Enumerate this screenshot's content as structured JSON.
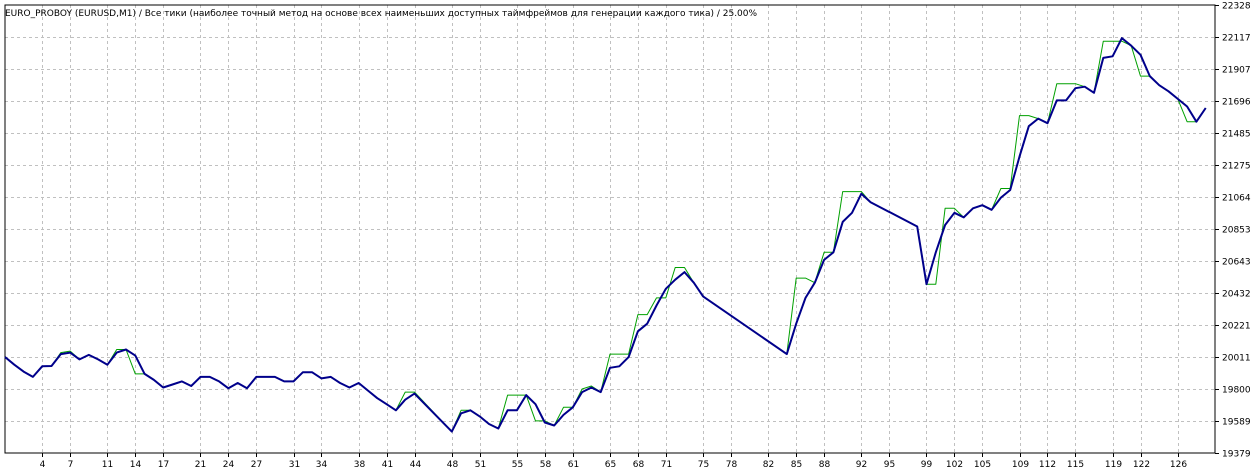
{
  "title": "EURO_PROBOY (EURUSD,M1) / Все тики (наиболее точный метод на основе всех наименьших доступных таймфреймов для генерации каждого тика) / 25.00%",
  "colors": {
    "background": "#ffffff",
    "grid": "#c0c0c0",
    "frame": "#000000",
    "balance_line": "#00008b",
    "equity_line": "#00a000"
  },
  "chart_data": {
    "type": "line",
    "title": "EURO_PROBOY (EURUSD,M1) / Все тики (наиболее точный метод на основе всех наименьших доступных таймфреймов для генерации каждого тика) / 25.00%",
    "xlabel": "",
    "ylabel": "",
    "grid": true,
    "legend": "none",
    "xlim": [
      0,
      130
    ],
    "ylim": [
      19379,
      22328
    ],
    "y_ticks": [
      19379,
      19589,
      19800,
      20011,
      20221,
      20432,
      20643,
      20853,
      21064,
      21275,
      21485,
      21696,
      21907,
      22117,
      22328
    ],
    "x_ticks": [
      4,
      7,
      11,
      14,
      17,
      21,
      24,
      27,
      31,
      34,
      38,
      41,
      44,
      48,
      51,
      55,
      58,
      61,
      65,
      68,
      71,
      75,
      78,
      82,
      85,
      88,
      92,
      95,
      99,
      102,
      105,
      109,
      112,
      115,
      119,
      122,
      126
    ],
    "series": [
      {
        "color": "#00008b",
        "x": [
          0,
          1,
          2,
          3,
          4,
          5,
          6,
          7,
          8,
          9,
          10,
          11,
          12,
          13,
          14,
          15,
          16,
          17,
          18,
          19,
          20,
          21,
          22,
          23,
          24,
          25,
          26,
          27,
          28,
          29,
          30,
          31,
          32,
          33,
          34,
          35,
          36,
          37,
          38,
          39,
          40,
          41,
          42,
          43,
          44,
          48,
          49,
          50,
          51,
          52,
          53,
          54,
          55,
          56,
          57,
          58,
          59,
          60,
          61,
          62,
          63,
          64,
          65,
          66,
          67,
          68,
          69,
          70,
          71,
          72,
          73,
          74,
          75,
          84,
          85,
          86,
          87,
          88,
          89,
          90,
          91,
          92,
          93,
          98,
          99,
          100,
          101,
          102,
          103,
          104,
          105,
          106,
          107,
          108,
          109,
          110,
          111,
          112,
          113,
          114,
          115,
          116,
          117,
          118,
          119,
          120,
          121,
          122,
          123,
          124,
          125,
          126,
          127,
          128,
          129
        ],
        "values": [
          20011,
          19960,
          19915,
          19880,
          19950,
          19952,
          20030,
          20040,
          19995,
          20025,
          19995,
          19960,
          20040,
          20060,
          20020,
          19900,
          19860,
          19810,
          19830,
          19850,
          19820,
          19880,
          19880,
          19850,
          19805,
          19840,
          19805,
          19880,
          19880,
          19880,
          19850,
          19850,
          19910,
          19910,
          19870,
          19880,
          19840,
          19810,
          19840,
          19790,
          19740,
          19700,
          19660,
          19730,
          19770,
          19520,
          19640,
          19660,
          19620,
          19570,
          19540,
          19660,
          19660,
          19760,
          19700,
          19580,
          19560,
          19630,
          19680,
          19780,
          19810,
          19780,
          19940,
          19950,
          20010,
          20180,
          20230,
          20350,
          20460,
          20520,
          20570,
          20500,
          20410,
          20030,
          20230,
          20400,
          20500,
          20650,
          20700,
          20900,
          20960,
          21085,
          21030,
          20870,
          20490,
          20700,
          20880,
          20960,
          20930,
          20990,
          21010,
          20980,
          21060,
          21110,
          21330,
          21530,
          21580,
          21550,
          21700,
          21700,
          21780,
          21790,
          21750,
          21980,
          21990,
          22110,
          22060,
          22000,
          21860,
          21800,
          21760,
          21710,
          21660,
          21560,
          21650
        ]
      },
      {
        "color": "#00a000",
        "x": [
          0,
          1,
          2,
          3,
          4,
          5,
          6,
          7,
          8,
          9,
          10,
          11,
          12,
          13,
          14,
          15,
          16,
          17,
          18,
          19,
          20,
          21,
          22,
          23,
          24,
          25,
          26,
          27,
          28,
          29,
          30,
          31,
          32,
          33,
          34,
          35,
          36,
          37,
          38,
          39,
          40,
          41,
          42,
          43,
          44,
          48,
          49,
          50,
          51,
          52,
          53,
          54,
          55,
          56,
          57,
          58,
          59,
          60,
          61,
          62,
          63,
          64,
          65,
          66,
          67,
          68,
          69,
          70,
          71,
          72,
          73,
          74,
          75,
          84,
          85,
          86,
          87,
          88,
          89,
          90,
          91,
          92,
          93,
          98,
          99,
          100,
          101,
          102,
          103,
          104,
          105,
          106,
          107,
          108,
          109,
          110,
          111,
          112,
          113,
          114,
          115,
          116,
          117,
          118,
          119,
          120,
          121,
          122,
          123,
          124,
          125,
          126,
          127,
          128,
          129
        ],
        "values": [
          20011,
          19960,
          19915,
          19880,
          19950,
          19952,
          20040,
          20050,
          19995,
          20025,
          19995,
          19960,
          20060,
          20060,
          19900,
          19900,
          19860,
          19810,
          19830,
          19850,
          19820,
          19880,
          19880,
          19850,
          19805,
          19840,
          19805,
          19880,
          19880,
          19880,
          19850,
          19850,
          19910,
          19910,
          19870,
          19880,
          19840,
          19810,
          19840,
          19790,
          19740,
          19700,
          19660,
          19780,
          19780,
          19520,
          19660,
          19660,
          19620,
          19570,
          19540,
          19760,
          19760,
          19760,
          19590,
          19590,
          19560,
          19680,
          19680,
          19800,
          19820,
          19780,
          20030,
          20030,
          20030,
          20290,
          20290,
          20400,
          20400,
          20600,
          20600,
          20500,
          20410,
          20030,
          20530,
          20530,
          20500,
          20700,
          20700,
          21100,
          21100,
          21100,
          21030,
          20870,
          20490,
          20490,
          20990,
          20990,
          20930,
          20990,
          21010,
          20980,
          21120,
          21120,
          21600,
          21600,
          21580,
          21550,
          21810,
          21810,
          21810,
          21790,
          21750,
          22090,
          22090,
          22090,
          22060,
          21860,
          21860,
          21800,
          21760,
          21710,
          21560,
          21560,
          21650
        ]
      }
    ]
  }
}
